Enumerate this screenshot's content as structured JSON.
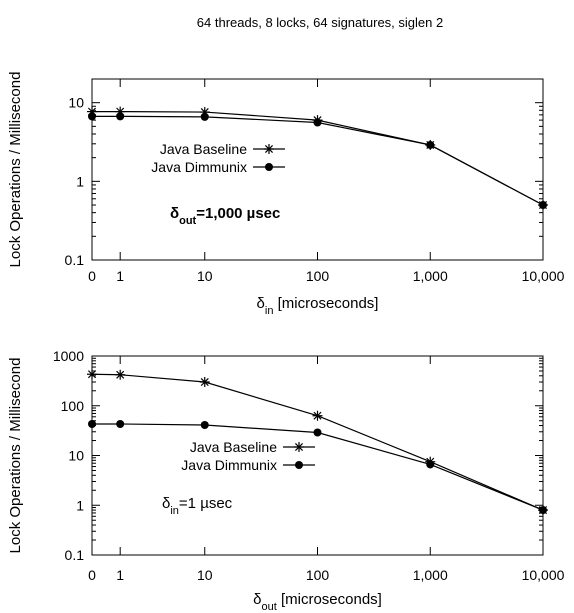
{
  "figure_title": "64 threads, 8 locks, 64 signatures, siglen 2",
  "chart_data": [
    {
      "type": "line",
      "yscale": "log",
      "xscale": "log-like (0, 1, 10, 100, 1000, 10000)",
      "ylabel": "Lock Operations / Millisecond",
      "xlabel": {
        "main": "δ",
        "sub": "in",
        "rest": " [microseconds]"
      },
      "x_ticks": [
        "0",
        "1",
        "10",
        "100",
        "1,000",
        "10,000"
      ],
      "y_ticks": [
        "0.1",
        "1",
        "10"
      ],
      "ylim": [
        0.1,
        20
      ],
      "x": [
        0,
        1,
        10,
        100,
        1000,
        10000
      ],
      "series": [
        {
          "name": "Java Baseline",
          "marker": "star",
          "values": [
            7.7,
            7.7,
            7.6,
            6.0,
            2.9,
            0.5
          ]
        },
        {
          "name": "Java Dimmunix",
          "marker": "circle",
          "values": [
            6.7,
            6.7,
            6.6,
            5.6,
            2.9,
            0.5
          ]
        }
      ],
      "annotation": {
        "main": "δ",
        "sub": "out",
        "rest": "=1,000 µsec"
      },
      "legend_position": "left-middle",
      "grid": false
    },
    {
      "type": "line",
      "yscale": "log",
      "xscale": "log-like (0, 1, 10, 100, 1000, 10000)",
      "ylabel": "Lock Operations / Millisecond",
      "xlabel": {
        "main": "δ",
        "sub": "out",
        "rest": " [microseconds]"
      },
      "x_ticks": [
        "0",
        "1",
        "10",
        "100",
        "1,000",
        "10,000"
      ],
      "y_ticks": [
        "0.1",
        "1",
        "10",
        "100",
        "1000"
      ],
      "ylim": [
        0.1,
        1000
      ],
      "x": [
        0,
        1,
        10,
        100,
        1000,
        10000
      ],
      "series": [
        {
          "name": "Java Baseline",
          "marker": "star",
          "values": [
            430,
            420,
            300,
            63,
            7.5,
            0.8
          ]
        },
        {
          "name": "Java Dimmunix",
          "marker": "circle",
          "values": [
            43,
            43,
            41,
            29,
            6.6,
            0.8
          ]
        }
      ],
      "annotation": {
        "main": "δ",
        "sub": "in",
        "rest": "=1 µsec"
      },
      "legend_position": "center-right",
      "grid": false
    }
  ]
}
